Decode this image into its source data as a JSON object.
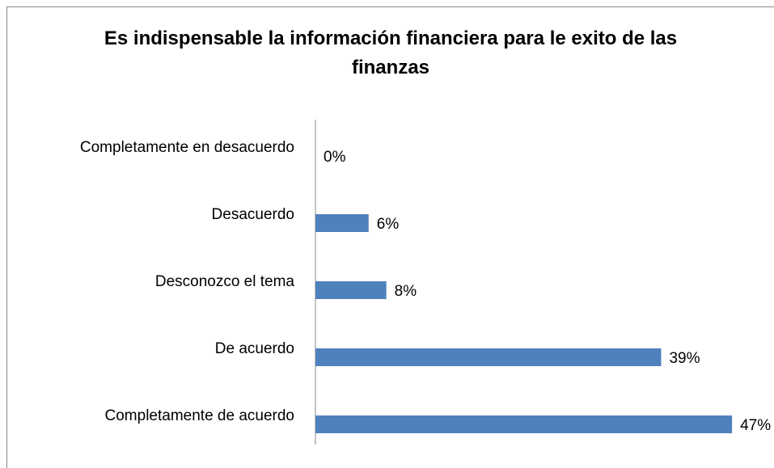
{
  "chart_data": {
    "type": "bar",
    "orientation": "horizontal",
    "title": "Es indispensable la información financiera para le exito de las finanzas",
    "categories": [
      "Completamente en desacuerdo",
      "Desacuerdo",
      "Desconozco el tema",
      "De acuerdo",
      "Completamente de acuerdo"
    ],
    "values": [
      0,
      6,
      8,
      39,
      47
    ],
    "value_labels": [
      "0%",
      "6%",
      "8%",
      "39%",
      "47%"
    ],
    "color": "#4f81bd",
    "xlim": [
      0,
      50
    ]
  }
}
